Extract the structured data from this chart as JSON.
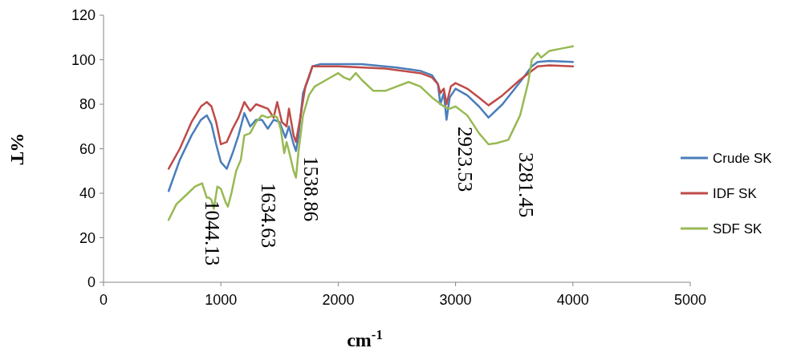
{
  "chart_data": {
    "type": "line",
    "xlabel": "cm$^{-1}$",
    "ylabel": "%T",
    "xlim": [
      0,
      5000
    ],
    "xticks": [
      0,
      1000,
      2000,
      3000,
      4000,
      5000
    ],
    "ylim": [
      0,
      120
    ],
    "yticks": [
      0,
      20,
      40,
      60,
      80,
      100,
      120
    ],
    "grid": false,
    "legend": "right",
    "marker": "none",
    "line_style": "solid",
    "annotations": [
      "1044.13",
      "1634.63",
      "1538.86",
      "2923.53",
      "3281.45"
    ],
    "series": [
      {
        "name": "Crude SK",
        "color": "#4a7ebb",
        "x": [
          555,
          650,
          750,
          830,
          880,
          920,
          960,
          1000,
          1050,
          1100,
          1150,
          1200,
          1250,
          1300,
          1350,
          1400,
          1450,
          1500,
          1550,
          1580,
          1620,
          1640,
          1660,
          1700,
          1750,
          1780,
          1850,
          2000,
          2200,
          2500,
          2700,
          2800,
          2850,
          2870,
          2900,
          2923,
          2950,
          3000,
          3100,
          3200,
          3281,
          3400,
          3550,
          3650,
          3700,
          3800,
          4000
        ],
        "values": [
          41,
          55,
          66,
          73,
          75,
          71,
          62,
          54,
          51,
          58,
          66,
          76,
          70,
          73,
          73,
          69,
          73,
          72,
          65,
          70,
          62,
          59,
          65,
          85,
          92,
          97,
          98,
          98,
          98,
          96.5,
          95,
          93,
          89,
          80,
          85,
          73,
          83,
          87,
          84,
          79,
          74,
          80,
          90,
          97,
          99,
          99.5,
          99
        ]
      },
      {
        "name": "IDF SK",
        "color": "#be4b48",
        "x": [
          555,
          650,
          750,
          830,
          880,
          920,
          960,
          1000,
          1050,
          1100,
          1150,
          1200,
          1250,
          1300,
          1350,
          1400,
          1450,
          1480,
          1520,
          1560,
          1580,
          1620,
          1640,
          1680,
          1720,
          1780,
          2000,
          2400,
          2700,
          2800,
          2850,
          2870,
          2900,
          2923,
          2960,
          3000,
          3100,
          3200,
          3281,
          3400,
          3550,
          3700,
          3800,
          4000
        ],
        "values": [
          51,
          60,
          72,
          79,
          81,
          79,
          72,
          62,
          63,
          69,
          74,
          81,
          77,
          80,
          79,
          78,
          74,
          81,
          72,
          70,
          78,
          66,
          63,
          75,
          88,
          97,
          97,
          96,
          94,
          92,
          89,
          85,
          87,
          80,
          88,
          89.5,
          87,
          83,
          79.5,
          84,
          91,
          97,
          97.5,
          97
        ]
      },
      {
        "name": "SDF SK",
        "color": "#98b954",
        "x": [
          555,
          620,
          700,
          780,
          840,
          880,
          900,
          920,
          940,
          970,
          1000,
          1040,
          1060,
          1090,
          1130,
          1170,
          1200,
          1250,
          1300,
          1350,
          1400,
          1450,
          1480,
          1510,
          1540,
          1560,
          1580,
          1620,
          1640,
          1660,
          1700,
          1750,
          1800,
          1900,
          2000,
          2050,
          2100,
          2150,
          2200,
          2300,
          2400,
          2600,
          2700,
          2800,
          2900,
          2950,
          3000,
          3100,
          3200,
          3281,
          3350,
          3450,
          3550,
          3620,
          3650,
          3700,
          3730,
          3800,
          3900,
          4000
        ],
        "values": [
          28,
          35,
          39,
          43,
          44.5,
          38,
          38,
          37,
          33,
          43,
          42,
          36,
          34,
          40,
          50,
          55,
          66,
          67,
          72,
          75,
          74,
          75,
          74,
          69,
          58,
          63,
          59,
          50,
          47,
          58,
          75,
          84,
          88,
          91,
          94,
          92,
          91,
          94,
          91,
          86,
          86,
          90,
          88,
          83,
          79,
          78,
          79,
          75,
          67,
          62,
          62.5,
          64,
          75,
          90,
          100,
          103,
          101,
          104,
          105,
          106
        ]
      }
    ]
  }
}
